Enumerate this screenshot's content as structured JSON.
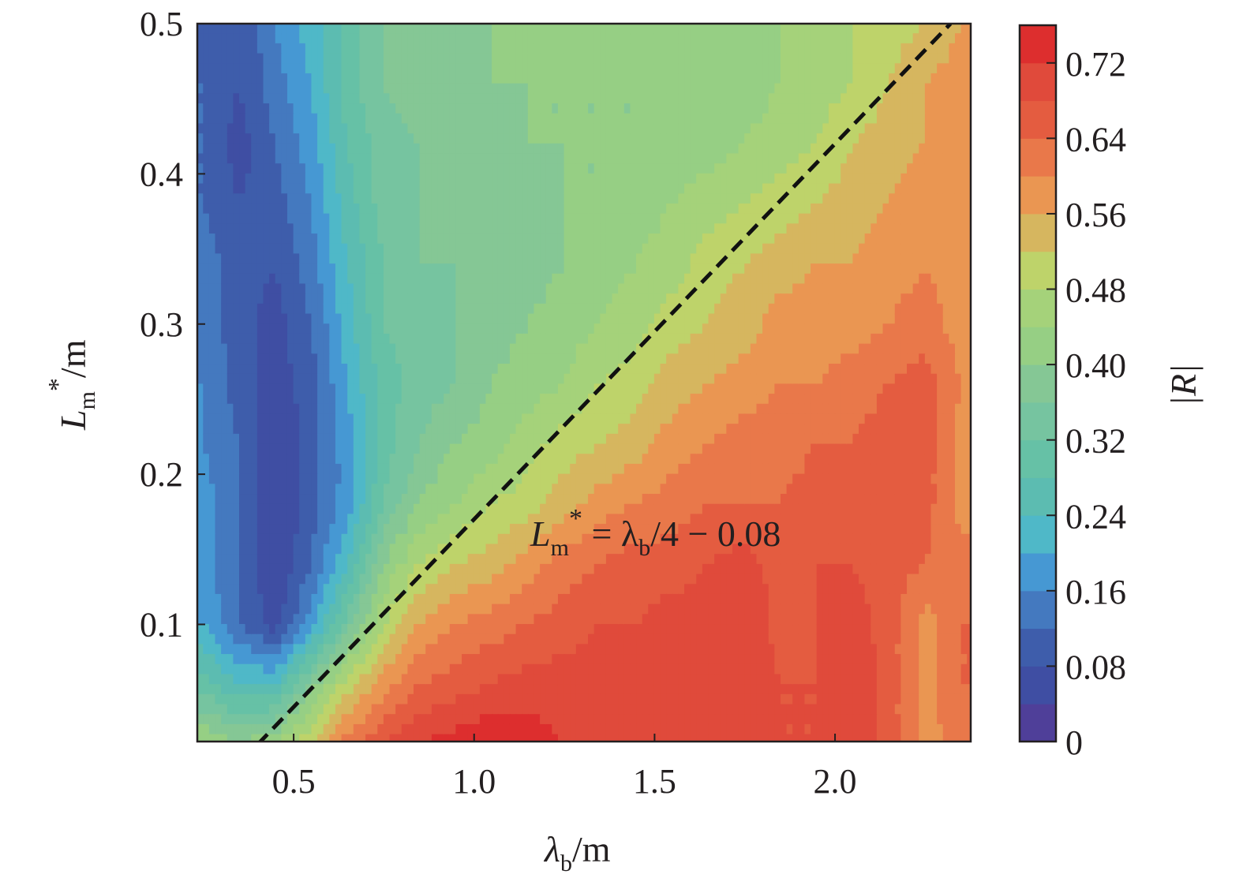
{
  "chart_data": {
    "type": "heatmap",
    "subtype": "filled-contour",
    "xlabel": "λb/m",
    "ylabel": "Lm*/m",
    "colorbar_label": "|R|",
    "xlim": [
      0.233,
      2.376
    ],
    "ylim": [
      0.022,
      0.5
    ],
    "x_ticks": [
      "0.5",
      "1.0",
      "1.5",
      "2.0"
    ],
    "y_ticks": [
      "0.1",
      "0.2",
      "0.3",
      "0.4",
      "0.5"
    ],
    "colorbar_ticks": [
      "0",
      "0.08",
      "0.16",
      "0.24",
      "0.32",
      "0.40",
      "0.48",
      "0.56",
      "0.64",
      "0.72"
    ],
    "colorbar_range": [
      0,
      0.76
    ],
    "levels_step": 0.04,
    "colors": [
      "#4f3f99",
      "#3f4ea3",
      "#3e5dab",
      "#4479bf",
      "#4698d3",
      "#4fb8c8",
      "#5cbcb1",
      "#66c1a6",
      "#76c4a0",
      "#85c795",
      "#96cf84",
      "#a5d27a",
      "#bed36a",
      "#d6b65f",
      "#ea9652",
      "#e9784a",
      "#e45c40",
      "#e04a3b",
      "#dd2e2e"
    ],
    "grid": false,
    "legend": "colorbar-right",
    "annotation": {
      "text_parts": [
        "L",
        "m",
        "*",
        " = λ",
        "b",
        "/4 − 0.08"
      ],
      "line": {
        "style": "dashed",
        "color": "#000000",
        "slope": 0.25,
        "intercept": -0.08,
        "x_range": [
          0.4,
          2.32
        ]
      }
    },
    "x": [
      0.25,
      0.35,
      0.45,
      0.55,
      0.65,
      0.75,
      0.85,
      0.95,
      1.05,
      1.15,
      1.25,
      1.35,
      1.45,
      1.55,
      1.65,
      1.75,
      1.85,
      1.95,
      2.05,
      2.15,
      2.25,
      2.35
    ],
    "y": [
      0.5,
      0.46,
      0.42,
      0.38,
      0.34,
      0.3,
      0.26,
      0.22,
      0.18,
      0.14,
      0.1,
      0.06,
      0.02
    ],
    "z": [
      [
        0.1,
        0.08,
        0.16,
        0.22,
        0.3,
        0.36,
        0.38,
        0.4,
        0.4,
        0.4,
        0.4,
        0.4,
        0.4,
        0.4,
        0.42,
        0.42,
        0.44,
        0.46,
        0.48,
        0.5,
        0.52,
        0.56
      ],
      [
        0.12,
        0.08,
        0.14,
        0.2,
        0.3,
        0.36,
        0.38,
        0.38,
        0.4,
        0.4,
        0.4,
        0.4,
        0.4,
        0.4,
        0.42,
        0.42,
        0.44,
        0.46,
        0.48,
        0.52,
        0.56,
        0.58
      ],
      [
        0.12,
        0.06,
        0.12,
        0.18,
        0.28,
        0.34,
        0.36,
        0.38,
        0.38,
        0.4,
        0.4,
        0.4,
        0.4,
        0.42,
        0.42,
        0.44,
        0.46,
        0.48,
        0.52,
        0.54,
        0.56,
        0.58
      ],
      [
        0.12,
        0.08,
        0.1,
        0.16,
        0.26,
        0.34,
        0.36,
        0.36,
        0.38,
        0.38,
        0.4,
        0.4,
        0.42,
        0.44,
        0.46,
        0.48,
        0.5,
        0.52,
        0.54,
        0.56,
        0.58,
        0.58
      ],
      [
        0.14,
        0.1,
        0.08,
        0.14,
        0.24,
        0.32,
        0.36,
        0.36,
        0.38,
        0.38,
        0.4,
        0.42,
        0.44,
        0.46,
        0.5,
        0.52,
        0.54,
        0.56,
        0.56,
        0.58,
        0.6,
        0.58
      ],
      [
        0.14,
        0.1,
        0.06,
        0.12,
        0.22,
        0.32,
        0.34,
        0.36,
        0.38,
        0.4,
        0.42,
        0.44,
        0.46,
        0.5,
        0.52,
        0.54,
        0.58,
        0.58,
        0.58,
        0.6,
        0.62,
        0.58
      ],
      [
        0.16,
        0.1,
        0.06,
        0.1,
        0.2,
        0.3,
        0.34,
        0.36,
        0.4,
        0.42,
        0.44,
        0.48,
        0.5,
        0.54,
        0.56,
        0.58,
        0.6,
        0.6,
        0.62,
        0.64,
        0.66,
        0.6
      ],
      [
        0.16,
        0.12,
        0.04,
        0.1,
        0.18,
        0.3,
        0.36,
        0.4,
        0.42,
        0.46,
        0.5,
        0.52,
        0.54,
        0.58,
        0.6,
        0.62,
        0.62,
        0.64,
        0.64,
        0.66,
        0.66,
        0.58
      ],
      [
        0.18,
        0.12,
        0.04,
        0.1,
        0.18,
        0.32,
        0.4,
        0.44,
        0.48,
        0.5,
        0.54,
        0.58,
        0.6,
        0.62,
        0.64,
        0.64,
        0.64,
        0.66,
        0.66,
        0.68,
        0.66,
        0.58
      ],
      [
        0.18,
        0.12,
        0.04,
        0.12,
        0.24,
        0.4,
        0.48,
        0.52,
        0.54,
        0.58,
        0.62,
        0.64,
        0.66,
        0.66,
        0.68,
        0.7,
        0.66,
        0.68,
        0.68,
        0.66,
        0.64,
        0.62
      ],
      [
        0.2,
        0.12,
        0.06,
        0.18,
        0.34,
        0.48,
        0.56,
        0.6,
        0.62,
        0.64,
        0.66,
        0.68,
        0.68,
        0.7,
        0.7,
        0.72,
        0.66,
        0.68,
        0.7,
        0.66,
        0.58,
        0.64
      ],
      [
        0.3,
        0.24,
        0.24,
        0.38,
        0.5,
        0.58,
        0.64,
        0.66,
        0.68,
        0.7,
        0.7,
        0.7,
        0.7,
        0.7,
        0.7,
        0.72,
        0.68,
        0.68,
        0.72,
        0.66,
        0.58,
        0.64
      ],
      [
        0.44,
        0.4,
        0.44,
        0.52,
        0.62,
        0.68,
        0.72,
        0.74,
        0.76,
        0.74,
        0.72,
        0.72,
        0.7,
        0.7,
        0.7,
        0.72,
        0.68,
        0.68,
        0.72,
        0.66,
        0.58,
        0.62
      ]
    ]
  }
}
